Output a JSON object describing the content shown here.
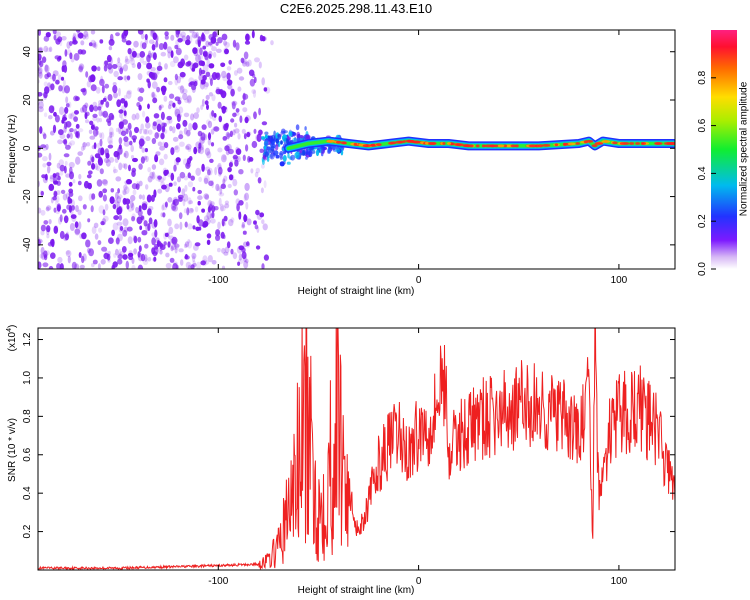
{
  "title": "C2E6.2025.298.11.43.E10",
  "colors": {
    "snr_line": "#ee2020",
    "frame": "#000000",
    "scatter": "#7a18ee"
  },
  "chart_data": [
    {
      "type": "heatmap",
      "name": "spectrogram",
      "xlabel": "Height of straight line (km)",
      "ylabel": "Frequency (Hz)",
      "xlim": [
        -190,
        128
      ],
      "ylim": [
        -50,
        49
      ],
      "xticks": [
        -100,
        0,
        100
      ],
      "xtick_labels": [
        "-100",
        "0",
        "100"
      ],
      "yticks": [
        -40,
        -20,
        0,
        20,
        40
      ],
      "ytick_labels": [
        "-40",
        "-20",
        "0",
        "20",
        "40"
      ],
      "description_of_content": "noise scatter from -190 to -80 km; narrow carrier near 2 Hz from -55 to 128 km",
      "carrier_track": {
        "x": [
          -65,
          -55,
          -45,
          -35,
          -25,
          -15,
          -5,
          5,
          15,
          25,
          40,
          60,
          80,
          85,
          88,
          92,
          100,
          115,
          128
        ],
        "y": [
          0,
          2,
          3,
          2,
          1,
          2,
          3,
          2,
          2,
          1,
          1,
          1,
          2,
          3,
          1,
          3,
          2,
          2,
          2
        ]
      },
      "colorbar": {
        "label": "Normalized spectral amplitude",
        "range": [
          0,
          1
        ],
        "ticks": [
          0.0,
          0.2,
          0.4,
          0.6,
          0.8
        ],
        "tick_labels": [
          "0.0",
          "0.2",
          "0.4",
          "0.6",
          "0.8"
        ]
      }
    },
    {
      "type": "line",
      "name": "snr",
      "xlabel": "Height of straight line (km)",
      "ylabel": "SNR (10 * v/v)",
      "y_multiplier": "(x10",
      "y_multiplier_exp": "4",
      "y_multiplier_close": ")",
      "xlim": [
        -190,
        128
      ],
      "ylim": [
        0,
        1.26
      ],
      "xticks": [
        -100,
        0,
        100
      ],
      "xtick_labels": [
        "-100",
        "0",
        "100"
      ],
      "yticks": [
        0.2,
        0.4,
        0.6,
        0.8,
        1.0,
        1.2
      ],
      "ytick_labels": [
        "0.2",
        "0.4",
        "0.6",
        "0.8",
        "1.0",
        "1.2"
      ],
      "series": [
        {
          "name": "SNR",
          "x": [
            -190,
            -150,
            -110,
            -80,
            -75,
            -70,
            -65,
            -60,
            -57,
            -54,
            -50,
            -45,
            -40,
            -35,
            -30,
            -25,
            -20,
            -15,
            -10,
            -5,
            0,
            5,
            10,
            13,
            15,
            20,
            30,
            40,
            50,
            60,
            70,
            80,
            85,
            87,
            88,
            90,
            95,
            100,
            110,
            120,
            125,
            128
          ],
          "y": [
            0.01,
            0.01,
            0.02,
            0.03,
            0.05,
            0.12,
            0.3,
            0.55,
            0.82,
            0.6,
            0.28,
            0.5,
            0.8,
            0.4,
            0.2,
            0.35,
            0.55,
            0.65,
            0.7,
            0.6,
            0.72,
            0.75,
            0.9,
            1.05,
            0.6,
            0.7,
            0.78,
            0.8,
            0.86,
            0.85,
            0.8,
            0.7,
            0.9,
            0.15,
            1.25,
            0.35,
            0.7,
            0.8,
            0.85,
            0.7,
            0.5,
            0.42
          ]
        }
      ]
    }
  ]
}
